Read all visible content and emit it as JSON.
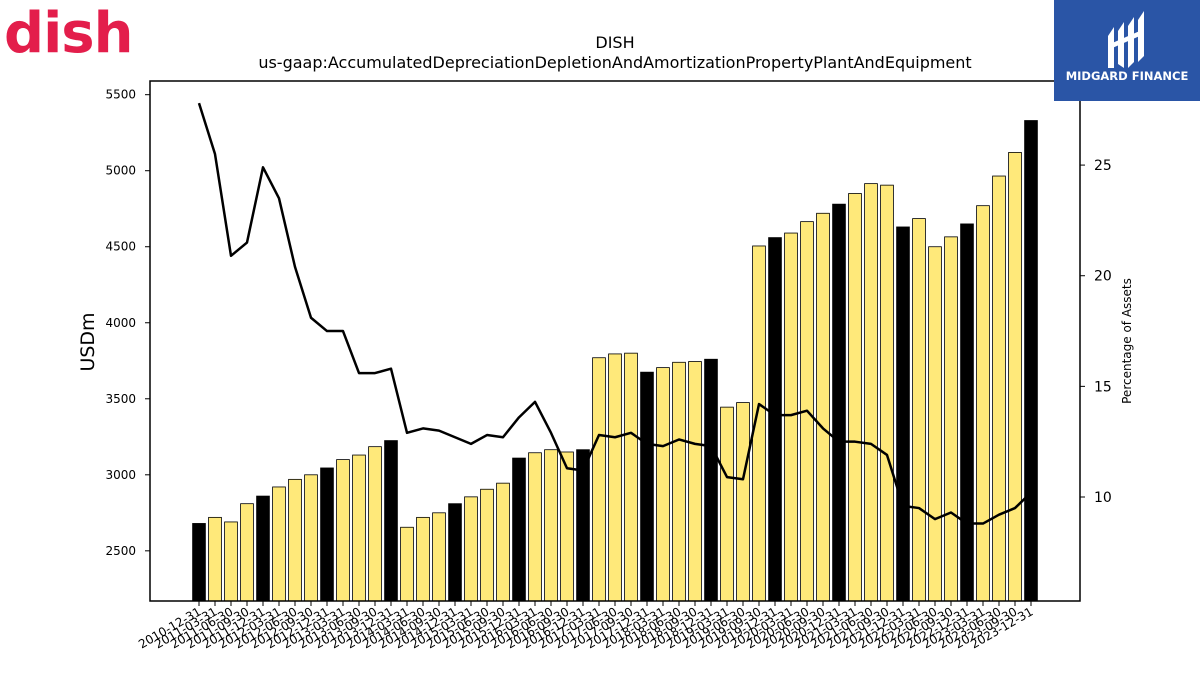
{
  "branding": {
    "company_logo_text": "dish",
    "company_logo_color": "#e31e4b",
    "publisher_logo_text": "MIDGARD FINANCE",
    "publisher_logo_color": "#2a55a6"
  },
  "chart_data": {
    "type": "bar",
    "title": "DISH",
    "subtitle": "us-gaap:AccumulatedDepreciationDepletionAndAmortizationPropertyPlantAndEquipment",
    "ylabel": "USDm",
    "y2label": "Percentage of Assets",
    "ylim": [
      2170,
      5590
    ],
    "y2lim": [
      5.3,
      28.8
    ],
    "yticks": [
      2500,
      3000,
      3500,
      4000,
      4500,
      5000,
      5500
    ],
    "y2ticks": [
      10,
      15,
      20,
      25
    ],
    "grid": false,
    "bar_colors": {
      "year_end": "#000000",
      "quarter": "#ffe97a",
      "edge": "#000000"
    },
    "line_color": "#000000",
    "categories": [
      "2010-12-31",
      "2011-03-31",
      "2011-06-30",
      "2011-09-30",
      "2011-12-31",
      "2012-03-31",
      "2012-06-30",
      "2012-09-30",
      "2012-12-31",
      "2013-03-31",
      "2013-06-30",
      "2013-09-30",
      "2013-12-31",
      "2014-03-31",
      "2014-06-30",
      "2014-09-30",
      "2014-12-31",
      "2015-03-31",
      "2015-06-30",
      "2015-09-30",
      "2015-12-31",
      "2016-03-31",
      "2016-06-30",
      "2016-09-30",
      "2016-12-31",
      "2017-03-31",
      "2017-06-30",
      "2017-09-30",
      "2017-12-31",
      "2018-03-31",
      "2018-06-30",
      "2018-09-30",
      "2018-12-31",
      "2019-03-31",
      "2019-06-30",
      "2019-09-30",
      "2019-12-31",
      "2020-03-31",
      "2020-06-30",
      "2020-09-30",
      "2020-12-31",
      "2021-03-31",
      "2021-06-30",
      "2021-09-30",
      "2021-12-31",
      "2022-03-31",
      "2022-06-30",
      "2022-09-30",
      "2022-12-31",
      "2023-03-31",
      "2023-06-30",
      "2023-09-30",
      "2023-12-31"
    ],
    "series": [
      {
        "name": "USDm",
        "kind": "bar",
        "values": [
          2680,
          2720,
          2690,
          2810,
          2860,
          2920,
          2970,
          3000,
          3045,
          3100,
          3130,
          3185,
          3225,
          2655,
          2720,
          2750,
          2810,
          2855,
          2905,
          2945,
          3110,
          3145,
          3165,
          3150,
          3165,
          3770,
          3795,
          3800,
          3675,
          3705,
          3740,
          3745,
          3760,
          3445,
          3475,
          4505,
          4560,
          4590,
          4665,
          4720,
          4780,
          4850,
          4915,
          4905,
          4630,
          4685,
          4500,
          4565,
          4650,
          4770,
          4965,
          5120,
          5330
        ]
      },
      {
        "name": "Percentage of Assets",
        "kind": "line",
        "axis": "right",
        "values": [
          27.8,
          25.5,
          20.9,
          21.5,
          24.9,
          23.5,
          20.4,
          18.1,
          17.5,
          17.5,
          15.6,
          15.6,
          15.8,
          12.9,
          13.1,
          13.0,
          12.7,
          12.4,
          12.8,
          12.7,
          13.6,
          14.3,
          12.9,
          11.3,
          11.2,
          12.8,
          12.7,
          12.9,
          12.4,
          12.3,
          12.6,
          12.4,
          12.3,
          10.9,
          10.8,
          14.2,
          13.7,
          13.7,
          13.9,
          13.1,
          12.5,
          12.5,
          12.4,
          11.9,
          9.6,
          9.5,
          9.0,
          9.3,
          8.8,
          8.8,
          9.2,
          9.5,
          10.2
        ]
      }
    ]
  }
}
